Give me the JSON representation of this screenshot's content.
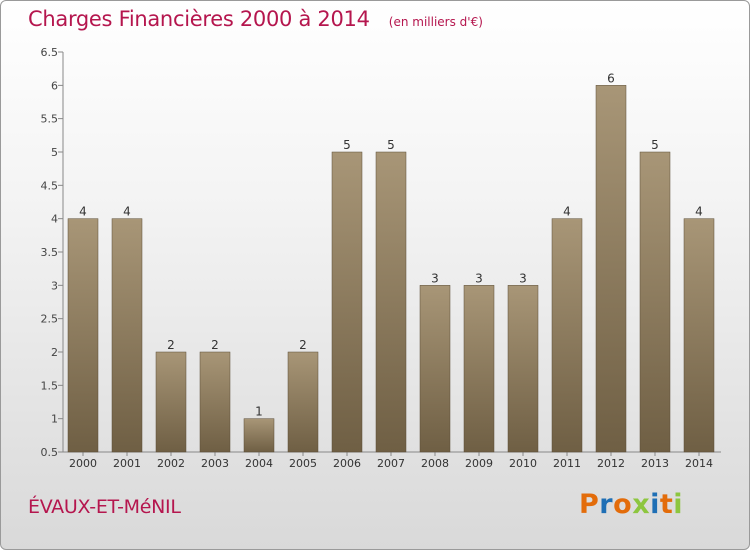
{
  "header": {
    "title": "Charges Financières 2000 à 2014",
    "subtitle": "(en milliers d'€)"
  },
  "footer": {
    "commune": "ÉVAUX-ET-MéNIL",
    "logo_text": "Proxiti"
  },
  "colors": {
    "accent": "#b5164e",
    "bar_top": "#a89677",
    "bar_bottom": "#6f5f44",
    "logo_letters": [
      "#e36c0a",
      "#1f6fb5",
      "#e36c0a",
      "#8dc63f",
      "#1f6fb5",
      "#e36c0a",
      "#8dc63f"
    ]
  },
  "chart_data": {
    "type": "bar",
    "categories": [
      "2000",
      "2001",
      "2002",
      "2003",
      "2004",
      "2005",
      "2006",
      "2007",
      "2008",
      "2009",
      "2010",
      "2011",
      "2012",
      "2013",
      "2014"
    ],
    "values": [
      4,
      4,
      2,
      2,
      1,
      2,
      5,
      5,
      3,
      3,
      3,
      4,
      6,
      5,
      4
    ],
    "data_labels": [
      "4",
      "4",
      "2",
      "2",
      "1",
      "2",
      "5",
      "5",
      "3",
      "3",
      "3",
      "4",
      "6",
      "5",
      "4"
    ],
    "y_ticks": [
      0.5,
      1,
      1.5,
      2,
      2.5,
      3,
      3.5,
      4,
      4.5,
      5,
      5.5,
      6,
      6.5
    ],
    "y_tick_labels": [
      "0.5",
      "1",
      "1.5",
      "2",
      "2.5",
      "3",
      "3.5",
      "4",
      "4.5",
      "5",
      "5.5",
      "6",
      "6.5"
    ],
    "ylim": [
      0.5,
      6.5
    ],
    "grid": false,
    "legend": "none",
    "xlabel": "",
    "ylabel": ""
  }
}
